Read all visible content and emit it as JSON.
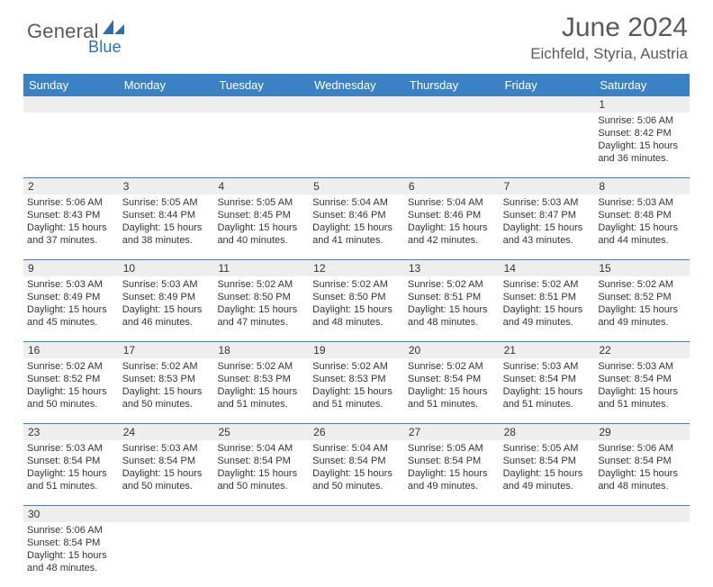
{
  "brand": {
    "part1": "General",
    "part2": "Blue"
  },
  "title": "June 2024",
  "location": "Eichfeld, Styria, Austria",
  "colors": {
    "header_bg": "#3b82c4",
    "header_text": "#ffffff",
    "numrow_bg": "#eeeeee",
    "border": "#3b82c4",
    "title_color": "#5a5a5a",
    "body_text": "#333333",
    "logo_gray": "#5a5a5a",
    "logo_blue": "#2f6fa8"
  },
  "day_headers": [
    "Sunday",
    "Monday",
    "Tuesday",
    "Wednesday",
    "Thursday",
    "Friday",
    "Saturday"
  ],
  "weeks": [
    [
      null,
      null,
      null,
      null,
      null,
      null,
      {
        "n": "1",
        "sr": "5:06 AM",
        "ss": "8:42 PM",
        "dl": "15 hours and 36 minutes."
      }
    ],
    [
      {
        "n": "2",
        "sr": "5:06 AM",
        "ss": "8:43 PM",
        "dl": "15 hours and 37 minutes."
      },
      {
        "n": "3",
        "sr": "5:05 AM",
        "ss": "8:44 PM",
        "dl": "15 hours and 38 minutes."
      },
      {
        "n": "4",
        "sr": "5:05 AM",
        "ss": "8:45 PM",
        "dl": "15 hours and 40 minutes."
      },
      {
        "n": "5",
        "sr": "5:04 AM",
        "ss": "8:46 PM",
        "dl": "15 hours and 41 minutes."
      },
      {
        "n": "6",
        "sr": "5:04 AM",
        "ss": "8:46 PM",
        "dl": "15 hours and 42 minutes."
      },
      {
        "n": "7",
        "sr": "5:03 AM",
        "ss": "8:47 PM",
        "dl": "15 hours and 43 minutes."
      },
      {
        "n": "8",
        "sr": "5:03 AM",
        "ss": "8:48 PM",
        "dl": "15 hours and 44 minutes."
      }
    ],
    [
      {
        "n": "9",
        "sr": "5:03 AM",
        "ss": "8:49 PM",
        "dl": "15 hours and 45 minutes."
      },
      {
        "n": "10",
        "sr": "5:03 AM",
        "ss": "8:49 PM",
        "dl": "15 hours and 46 minutes."
      },
      {
        "n": "11",
        "sr": "5:02 AM",
        "ss": "8:50 PM",
        "dl": "15 hours and 47 minutes."
      },
      {
        "n": "12",
        "sr": "5:02 AM",
        "ss": "8:50 PM",
        "dl": "15 hours and 48 minutes."
      },
      {
        "n": "13",
        "sr": "5:02 AM",
        "ss": "8:51 PM",
        "dl": "15 hours and 48 minutes."
      },
      {
        "n": "14",
        "sr": "5:02 AM",
        "ss": "8:51 PM",
        "dl": "15 hours and 49 minutes."
      },
      {
        "n": "15",
        "sr": "5:02 AM",
        "ss": "8:52 PM",
        "dl": "15 hours and 49 minutes."
      }
    ],
    [
      {
        "n": "16",
        "sr": "5:02 AM",
        "ss": "8:52 PM",
        "dl": "15 hours and 50 minutes."
      },
      {
        "n": "17",
        "sr": "5:02 AM",
        "ss": "8:53 PM",
        "dl": "15 hours and 50 minutes."
      },
      {
        "n": "18",
        "sr": "5:02 AM",
        "ss": "8:53 PM",
        "dl": "15 hours and 51 minutes."
      },
      {
        "n": "19",
        "sr": "5:02 AM",
        "ss": "8:53 PM",
        "dl": "15 hours and 51 minutes."
      },
      {
        "n": "20",
        "sr": "5:02 AM",
        "ss": "8:54 PM",
        "dl": "15 hours and 51 minutes."
      },
      {
        "n": "21",
        "sr": "5:03 AM",
        "ss": "8:54 PM",
        "dl": "15 hours and 51 minutes."
      },
      {
        "n": "22",
        "sr": "5:03 AM",
        "ss": "8:54 PM",
        "dl": "15 hours and 51 minutes."
      }
    ],
    [
      {
        "n": "23",
        "sr": "5:03 AM",
        "ss": "8:54 PM",
        "dl": "15 hours and 51 minutes."
      },
      {
        "n": "24",
        "sr": "5:03 AM",
        "ss": "8:54 PM",
        "dl": "15 hours and 50 minutes."
      },
      {
        "n": "25",
        "sr": "5:04 AM",
        "ss": "8:54 PM",
        "dl": "15 hours and 50 minutes."
      },
      {
        "n": "26",
        "sr": "5:04 AM",
        "ss": "8:54 PM",
        "dl": "15 hours and 50 minutes."
      },
      {
        "n": "27",
        "sr": "5:05 AM",
        "ss": "8:54 PM",
        "dl": "15 hours and 49 minutes."
      },
      {
        "n": "28",
        "sr": "5:05 AM",
        "ss": "8:54 PM",
        "dl": "15 hours and 49 minutes."
      },
      {
        "n": "29",
        "sr": "5:06 AM",
        "ss": "8:54 PM",
        "dl": "15 hours and 48 minutes."
      }
    ],
    [
      {
        "n": "30",
        "sr": "5:06 AM",
        "ss": "8:54 PM",
        "dl": "15 hours and 48 minutes."
      },
      null,
      null,
      null,
      null,
      null,
      null
    ]
  ],
  "labels": {
    "sunrise": "Sunrise:",
    "sunset": "Sunset:",
    "daylight": "Daylight:"
  }
}
